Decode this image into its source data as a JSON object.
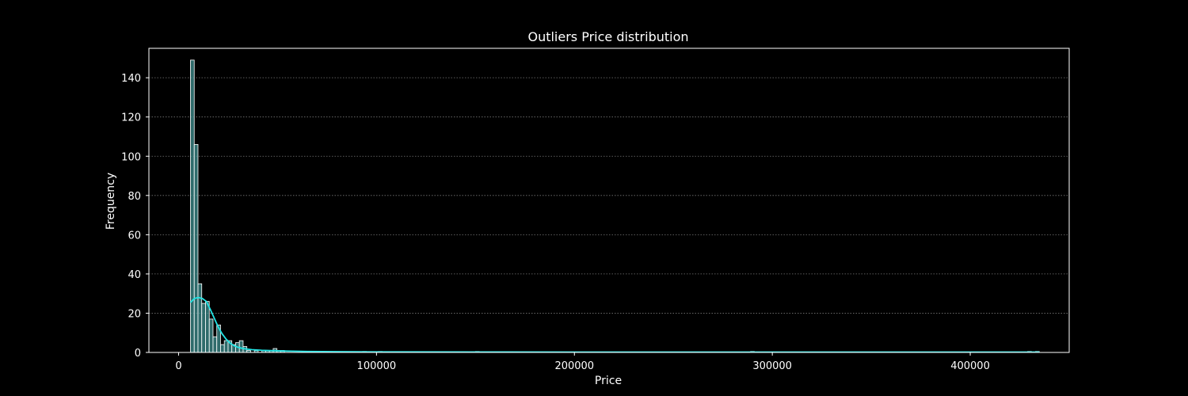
{
  "chart_data": {
    "type": "histogram",
    "title": "Outliers Price distribution",
    "xlabel": "Price",
    "ylabel": "Frequency",
    "xlim": [
      -15000,
      450000
    ],
    "ylim": [
      0,
      155
    ],
    "x_ticks": [
      0,
      100000,
      200000,
      300000,
      400000
    ],
    "y_ticks": [
      0,
      20,
      40,
      60,
      80,
      100,
      120,
      140
    ],
    "grid": "y-dotted",
    "bin_width": 1900,
    "bins": [
      {
        "x": 6000,
        "count": 149
      },
      {
        "x": 7900,
        "count": 106
      },
      {
        "x": 9800,
        "count": 35
      },
      {
        "x": 11700,
        "count": 25
      },
      {
        "x": 13600,
        "count": 26
      },
      {
        "x": 15500,
        "count": 17
      },
      {
        "x": 17400,
        "count": 8
      },
      {
        "x": 19300,
        "count": 14
      },
      {
        "x": 21200,
        "count": 4
      },
      {
        "x": 23100,
        "count": 6
      },
      {
        "x": 25000,
        "count": 6
      },
      {
        "x": 26900,
        "count": 4
      },
      {
        "x": 28800,
        "count": 5
      },
      {
        "x": 30700,
        "count": 6
      },
      {
        "x": 32600,
        "count": 3
      },
      {
        "x": 34500,
        "count": 1
      },
      {
        "x": 38300,
        "count": 1
      },
      {
        "x": 42100,
        "count": 1
      },
      {
        "x": 44000,
        "count": 1
      },
      {
        "x": 45900,
        "count": 1
      },
      {
        "x": 47800,
        "count": 2
      },
      {
        "x": 49700,
        "count": 1
      },
      {
        "x": 51600,
        "count": 1
      },
      {
        "x": 73000,
        "count": 0.5
      },
      {
        "x": 93000,
        "count": 0.5
      },
      {
        "x": 101000,
        "count": 0.5
      },
      {
        "x": 150000,
        "count": 0.5
      },
      {
        "x": 289000,
        "count": 0.5
      },
      {
        "x": 429000,
        "count": 0.5
      },
      {
        "x": 433000,
        "count": 0.5
      }
    ],
    "kde": [
      [
        6000,
        25.5
      ],
      [
        8000,
        27.5
      ],
      [
        10000,
        28
      ],
      [
        12000,
        27.5
      ],
      [
        14000,
        26
      ],
      [
        16000,
        22
      ],
      [
        18000,
        17.5
      ],
      [
        20000,
        13
      ],
      [
        22000,
        9.5
      ],
      [
        24000,
        6.8
      ],
      [
        26000,
        4.8
      ],
      [
        28000,
        3.5
      ],
      [
        30000,
        2.6
      ],
      [
        33000,
        1.9
      ],
      [
        37000,
        1.4
      ],
      [
        42000,
        1.1
      ],
      [
        48000,
        0.9
      ],
      [
        55000,
        0.7
      ],
      [
        65000,
        0.5
      ],
      [
        80000,
        0.4
      ],
      [
        100000,
        0.3
      ],
      [
        150000,
        0.25
      ],
      [
        200000,
        0.2
      ],
      [
        250000,
        0.2
      ],
      [
        300000,
        0.2
      ],
      [
        350000,
        0.2
      ],
      [
        400000,
        0.2
      ],
      [
        435000,
        0.2
      ]
    ],
    "colors": {
      "background": "#000000",
      "bar_fill": "#3f8f8f",
      "bar_edge": "#ffffff",
      "kde_line": "#22e5e5",
      "axes": "#ffffff",
      "grid": "#777777"
    }
  }
}
